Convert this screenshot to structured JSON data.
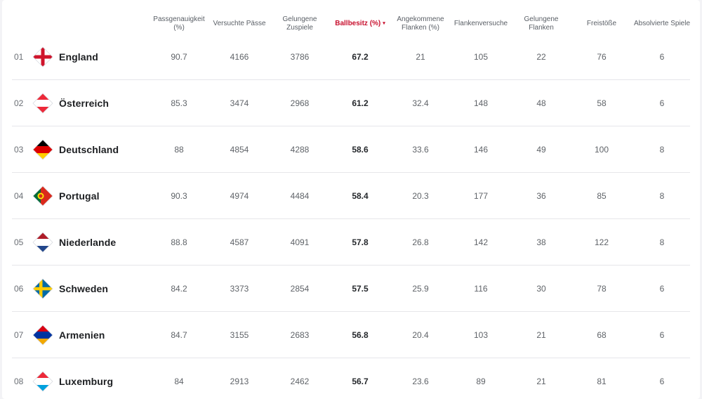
{
  "columns": [
    {
      "label": "Passgenauigkeit\n(%)"
    },
    {
      "label": "Versuchte Pässe"
    },
    {
      "label": "Gelungene\nZuspiele"
    },
    {
      "label": "Ballbesitz (%)",
      "active": true
    },
    {
      "label": "Angekommene\nFlanken (%)"
    },
    {
      "label": "Flankenversuche"
    },
    {
      "label": "Gelungene\nFlanken"
    },
    {
      "label": "Freistöße"
    },
    {
      "label": "Absolvierte Spiele"
    }
  ],
  "sort_caret": "▾",
  "accent_color": "#c8102e",
  "rows": [
    {
      "rank": "01",
      "team": "England",
      "flag": "england-flag-icon",
      "values": [
        "90.7",
        "4166",
        "3786",
        "67.2",
        "21",
        "105",
        "22",
        "76",
        "6"
      ]
    },
    {
      "rank": "02",
      "team": "Österreich",
      "flag": "austria-flag-icon",
      "values": [
        "85.3",
        "3474",
        "2968",
        "61.2",
        "32.4",
        "148",
        "48",
        "58",
        "6"
      ]
    },
    {
      "rank": "03",
      "team": "Deutschland",
      "flag": "germany-flag-icon",
      "values": [
        "88",
        "4854",
        "4288",
        "58.6",
        "33.6",
        "146",
        "49",
        "100",
        "8"
      ]
    },
    {
      "rank": "04",
      "team": "Portugal",
      "flag": "portugal-flag-icon",
      "values": [
        "90.3",
        "4974",
        "4484",
        "58.4",
        "20.3",
        "177",
        "36",
        "85",
        "8"
      ]
    },
    {
      "rank": "05",
      "team": "Niederlande",
      "flag": "netherlands-flag-icon",
      "values": [
        "88.8",
        "4587",
        "4091",
        "57.8",
        "26.8",
        "142",
        "38",
        "122",
        "8"
      ]
    },
    {
      "rank": "06",
      "team": "Schweden",
      "flag": "sweden-flag-icon",
      "values": [
        "84.2",
        "3373",
        "2854",
        "57.5",
        "25.9",
        "116",
        "30",
        "78",
        "6"
      ]
    },
    {
      "rank": "07",
      "team": "Armenien",
      "flag": "armenia-flag-icon",
      "values": [
        "84.7",
        "3155",
        "2683",
        "56.8",
        "20.4",
        "103",
        "21",
        "68",
        "6"
      ]
    },
    {
      "rank": "08",
      "team": "Luxemburg",
      "flag": "luxembourg-flag-icon",
      "values": [
        "84",
        "2913",
        "2462",
        "56.7",
        "23.6",
        "89",
        "21",
        "81",
        "6"
      ]
    }
  ]
}
